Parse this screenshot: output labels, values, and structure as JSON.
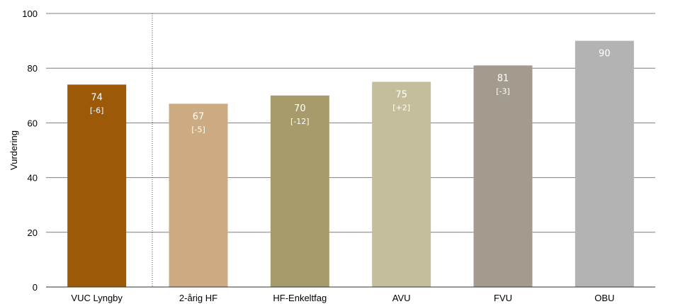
{
  "chart_data": {
    "type": "bar",
    "ylabel": "Vurdering",
    "ylim": [
      0,
      100
    ],
    "yticks": [
      0,
      20,
      40,
      60,
      80,
      100
    ],
    "grid": true,
    "categories": [
      "VUC Lyngby",
      "2-årig HF",
      "HF-Enkeltfag",
      "AVU",
      "FVU",
      "OBU"
    ],
    "values": [
      74,
      67,
      70,
      75,
      81,
      90
    ],
    "value_labels": [
      "74",
      "67",
      "70",
      "75",
      "81",
      "90"
    ],
    "change_labels": [
      "[-6]",
      "[-5]",
      "[-12]",
      "[+2]",
      "[-3]",
      ""
    ],
    "colors": [
      "#9c5a08",
      "#cdab82",
      "#a89b6b",
      "#c5be9c",
      "#a49b8f",
      "#b3b3b3"
    ]
  }
}
